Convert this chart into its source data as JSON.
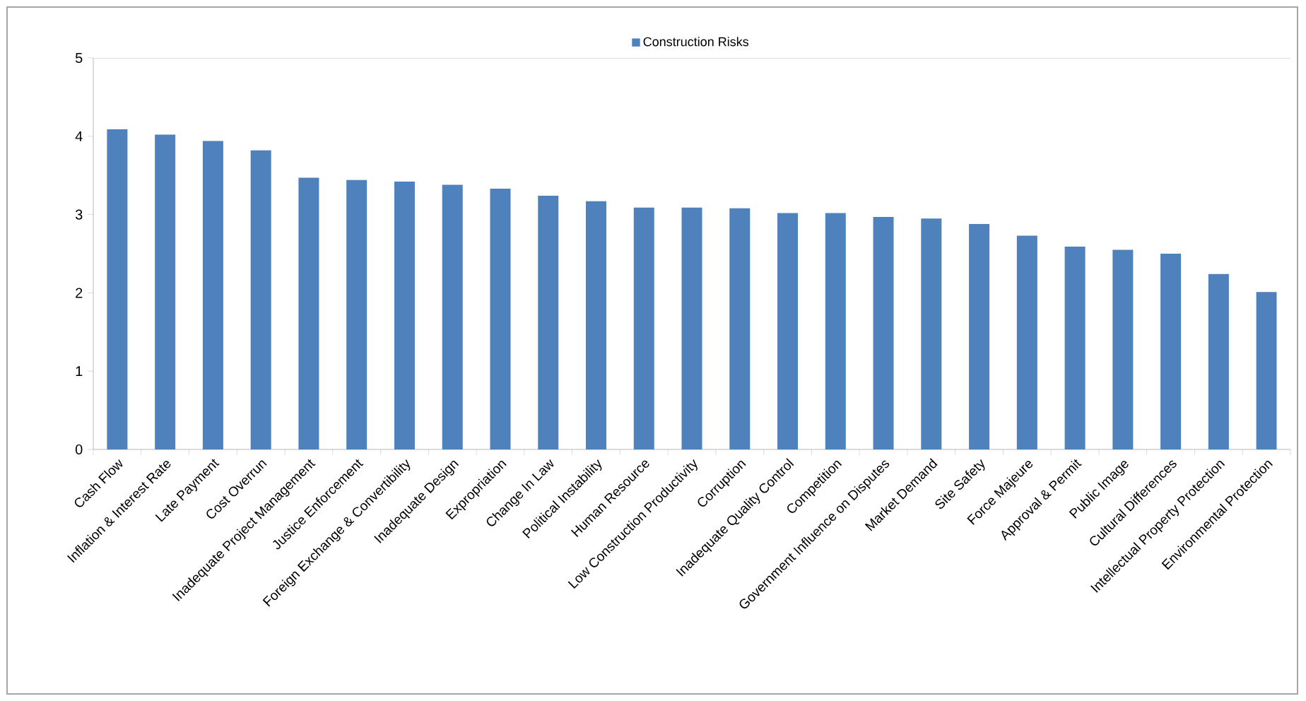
{
  "chart_data": {
    "type": "bar",
    "categories": [
      "Cash Flow",
      "Inflation & Interest Rate",
      "Late Payment",
      "Cost Overrun",
      "Inadequate Project Management",
      "Justice Enforcement",
      "Foreign Exchange & Convertibility",
      "Inadequate Design",
      "Expropriation",
      "Change In Law",
      "Political Instability",
      "Human Resource",
      "Low Construction Productivity",
      "Corruption",
      "Inadequate Quality Control",
      "Competition",
      "Government Influence on Disputes",
      "Market Demand",
      "Site Safety",
      "Force Majeure",
      "Approval & Permit",
      "Public Image",
      "Cultural Differences",
      "Intellectual Property Protection",
      "Environmental Protection"
    ],
    "series": [
      {
        "name": "Construction Risks",
        "color": "#4f81bd",
        "values": [
          4.09,
          4.02,
          3.94,
          3.82,
          3.47,
          3.44,
          3.42,
          3.38,
          3.33,
          3.24,
          3.17,
          3.09,
          3.09,
          3.08,
          3.02,
          3.02,
          2.97,
          2.95,
          2.88,
          2.73,
          2.59,
          2.55,
          2.5,
          2.24,
          2.01
        ]
      }
    ],
    "ylim": [
      0,
      5
    ],
    "yticks": [
      0,
      1,
      2,
      3,
      4,
      5
    ],
    "legend": "top",
    "grid": false
  }
}
